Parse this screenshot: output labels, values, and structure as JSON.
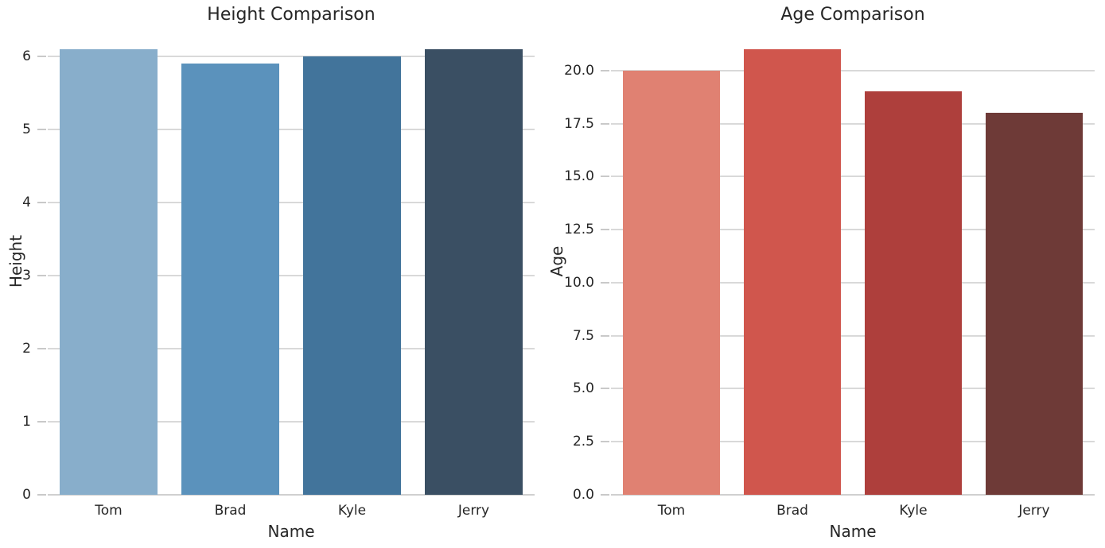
{
  "figure": {
    "background": "#ffffff"
  },
  "colors": {
    "text": "#262626",
    "grid": "#d9d9d9",
    "axis_line": "#d0d0d0",
    "tick_mark": "#c9c9c9"
  },
  "chart_data": [
    {
      "type": "bar",
      "title": "Height Comparison",
      "xlabel": "Name",
      "ylabel": "Height",
      "categories": [
        "Tom",
        "Brad",
        "Kyle",
        "Jerry"
      ],
      "values": [
        6.1,
        5.9,
        6.0,
        6.1
      ],
      "bar_colors": [
        "#88AECB",
        "#5B92BC",
        "#42749B",
        "#3A4F63"
      ],
      "ylim": [
        0,
        6.405
      ],
      "yticks": [
        {
          "value": 0,
          "label": "0"
        },
        {
          "value": 1,
          "label": "1"
        },
        {
          "value": 2,
          "label": "2"
        },
        {
          "value": 3,
          "label": "3"
        },
        {
          "value": 4,
          "label": "4"
        },
        {
          "value": 5,
          "label": "5"
        },
        {
          "value": 6,
          "label": "6"
        }
      ],
      "grid": "horizontal",
      "legend": "none"
    },
    {
      "type": "bar",
      "title": "Age Comparison",
      "xlabel": "Name",
      "ylabel": "Age",
      "categories": [
        "Tom",
        "Brad",
        "Kyle",
        "Jerry"
      ],
      "values": [
        20,
        21,
        19,
        18
      ],
      "bar_colors": [
        "#E08172",
        "#D0564D",
        "#AE3F3C",
        "#6E3A37"
      ],
      "ylim": [
        0,
        22.05
      ],
      "yticks": [
        {
          "value": 0,
          "label": "0.0"
        },
        {
          "value": 2.5,
          "label": "2.5"
        },
        {
          "value": 5,
          "label": "5.0"
        },
        {
          "value": 7.5,
          "label": "7.5"
        },
        {
          "value": 10,
          "label": "10.0"
        },
        {
          "value": 12.5,
          "label": "12.5"
        },
        {
          "value": 15,
          "label": "15.0"
        },
        {
          "value": 17.5,
          "label": "17.5"
        },
        {
          "value": 20,
          "label": "20.0"
        }
      ],
      "grid": "horizontal",
      "legend": "none"
    }
  ]
}
